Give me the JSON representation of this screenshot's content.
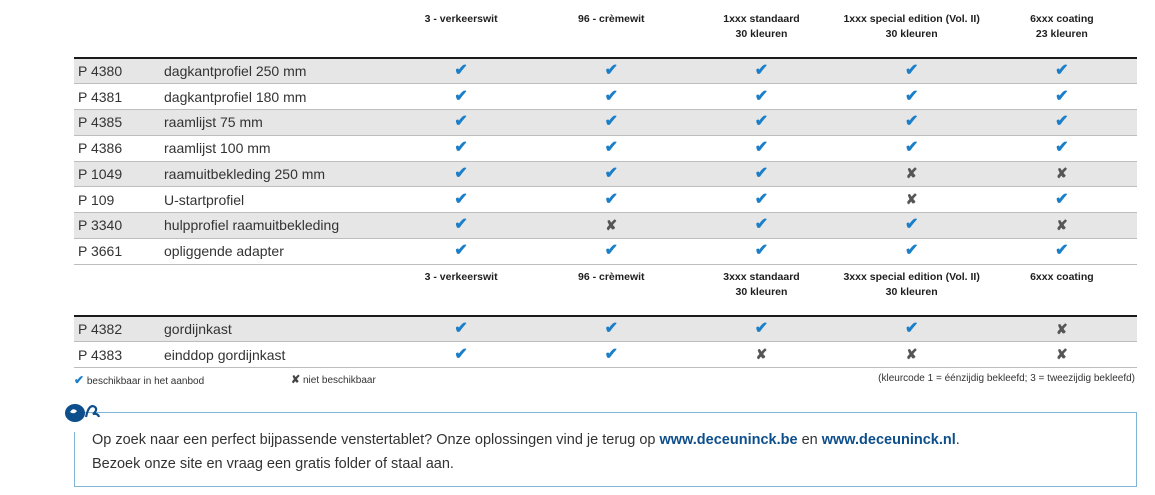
{
  "table1": {
    "headers": [
      [
        "3 - verkeerswit",
        ""
      ],
      [
        "96 - crèmewit",
        ""
      ],
      [
        "1xxx standaard",
        "30 kleuren"
      ],
      [
        "1xxx special edition (Vol. II)",
        "30 kleuren"
      ],
      [
        "6xxx coating",
        "23 kleuren"
      ]
    ],
    "rows": [
      {
        "code": "P 4380",
        "desc": "dagkantprofiel 250 mm",
        "marks": [
          "✔",
          "✔",
          "✔",
          "✔",
          "✔"
        ]
      },
      {
        "code": "P 4381",
        "desc": "dagkantprofiel 180 mm",
        "marks": [
          "✔",
          "✔",
          "✔",
          "✔",
          "✔"
        ]
      },
      {
        "code": "P 4385",
        "desc": "raamlijst 75 mm",
        "marks": [
          "✔",
          "✔",
          "✔",
          "✔",
          "✔"
        ]
      },
      {
        "code": "P 4386",
        "desc": "raamlijst 100 mm",
        "marks": [
          "✔",
          "✔",
          "✔",
          "✔",
          "✔"
        ]
      },
      {
        "code": "P 1049",
        "desc": "raamuitbekleding 250 mm",
        "marks": [
          "✔",
          "✔",
          "✔",
          "✘",
          "✘"
        ]
      },
      {
        "code": "P 109",
        "desc": "U-startprofiel",
        "marks": [
          "✔",
          "✔",
          "✔",
          "✘",
          "✔"
        ]
      },
      {
        "code": "P 3340",
        "desc": "hulpprofiel raamuitbekleding",
        "marks": [
          "✔",
          "✘",
          "✔",
          "✔",
          "✘"
        ]
      },
      {
        "code": "P 3661",
        "desc": "opliggende adapter",
        "marks": [
          "✔",
          "✔",
          "✔",
          "✔",
          "✔"
        ]
      }
    ]
  },
  "table2": {
    "headers": [
      [
        "3 - verkeerswit",
        ""
      ],
      [
        "96 - crèmewit",
        ""
      ],
      [
        "3xxx standaard",
        "30 kleuren"
      ],
      [
        "3xxx special edition (Vol. II)",
        "30 kleuren"
      ],
      [
        "6xxx coating",
        ""
      ]
    ],
    "rows": [
      {
        "code": "P 4382",
        "desc": "gordijnkast",
        "marks": [
          "✔",
          "✔",
          "✔",
          "✔",
          "✘"
        ]
      },
      {
        "code": "P 4383",
        "desc": "einddop gordijnkast",
        "marks": [
          "✔",
          "✔",
          "✘",
          "✘",
          "✘"
        ]
      }
    ]
  },
  "legend": {
    "yes_symbol": "✔",
    "yes_text": "beschikbaar in het aanbod",
    "no_symbol": "✘",
    "no_text": "niet beschikbaar",
    "note": "(kleurcode 1 = éénzijdig bekleefd; 3 = tweezijdig bekleefd)"
  },
  "info": {
    "line1_pre": "Op zoek naar een perfect bijpassende venstertablet? Onze oplossingen vind je terug op ",
    "link1": "www.deceuninck.be",
    "and": " en ",
    "link2": "www.deceuninck.nl",
    "line1_post": ".",
    "line2": "Bezoek onze site en vraag een gratis folder of staal aan.",
    "logo_icon": "deceuninck-tip-icon"
  },
  "colors": {
    "check": "#1a7ec8",
    "cross": "#555555",
    "link": "#0d4e8c",
    "stripe": "#e6e6e6",
    "box_border": "#7fb5d9"
  }
}
